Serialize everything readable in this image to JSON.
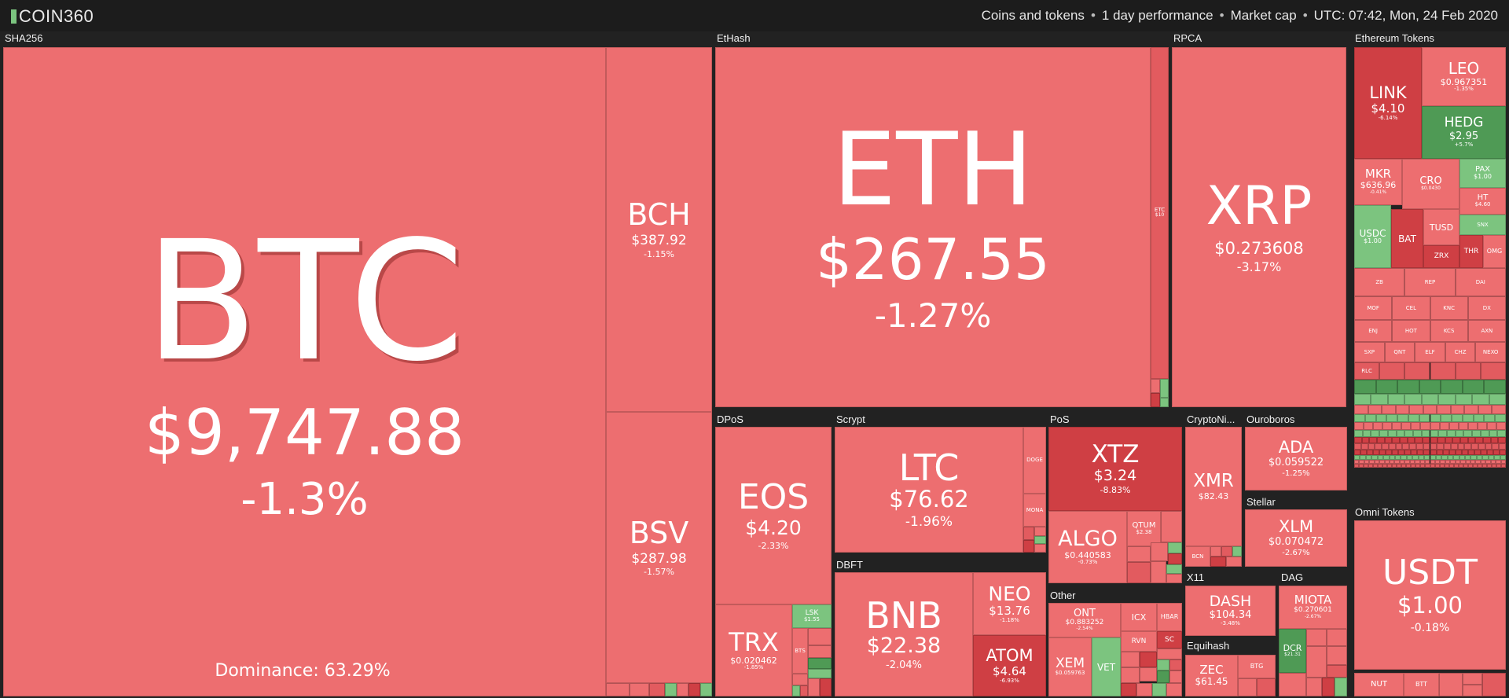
{
  "app": {
    "brand": "COIN360"
  },
  "settings": {
    "coins": "Coins and tokens",
    "period": "1 day performance",
    "metric": "Market cap",
    "time": "UTC: 07:42, Mon, 24 Feb 2020",
    "separator": "•"
  },
  "groups": {
    "sha256": "SHA256",
    "ethash": "EtHash",
    "rpca": "RPCA",
    "ethereum_tokens": "Ethereum Tokens",
    "dpos": "DPoS",
    "scrypt": "Scrypt",
    "pos": "PoS",
    "cryptonight": "CryptoNi...",
    "ouroboros": "Ouroboros",
    "stellar": "Stellar",
    "dbft": "DBFT",
    "other": "Other",
    "x11": "X11",
    "dag": "DAG",
    "equihash": "Equihash",
    "omni": "Omni Tokens"
  },
  "dominance": "Dominance: 63.29%",
  "coins": {
    "btc": {
      "sym": "BTC",
      "price": "$9,747.88",
      "chg": "-1.3%"
    },
    "bch": {
      "sym": "BCH",
      "price": "$387.92",
      "chg": "-1.15%"
    },
    "bsv": {
      "sym": "BSV",
      "price": "$287.98",
      "chg": "-1.57%"
    },
    "eth": {
      "sym": "ETH",
      "price": "$267.55",
      "chg": "-1.27%"
    },
    "etc": {
      "sym": "ETC",
      "price": "$10",
      "chg": ""
    },
    "xrp": {
      "sym": "XRP",
      "price": "$0.273608",
      "chg": "-3.17%"
    },
    "link": {
      "sym": "LINK",
      "price": "$4.10",
      "chg": "-6.14%"
    },
    "leo": {
      "sym": "LEO",
      "price": "$0.967351",
      "chg": "-1.35%"
    },
    "hedg": {
      "sym": "HEDG",
      "price": "$2.95",
      "chg": "+5.7%"
    },
    "mkr": {
      "sym": "MKR",
      "price": "$636.96",
      "chg": "-0.41%"
    },
    "cro": {
      "sym": "CRO",
      "price": "$0.0430",
      "chg": ""
    },
    "pax": {
      "sym": "PAX",
      "price": "$1.00",
      "chg": ""
    },
    "ht": {
      "sym": "HT",
      "price": "$4.60",
      "chg": ""
    },
    "usdc": {
      "sym": "USDC",
      "price": "$1.00",
      "chg": ""
    },
    "bat": {
      "sym": "BAT",
      "price": "",
      "chg": ""
    },
    "tusd": {
      "sym": "TUSD",
      "price": "",
      "chg": ""
    },
    "snx": {
      "sym": "SNX",
      "price": "",
      "chg": ""
    },
    "zrx": {
      "sym": "ZRX",
      "price": "",
      "chg": ""
    },
    "thr": {
      "sym": "THR",
      "price": "",
      "chg": ""
    },
    "omg": {
      "sym": "OMG",
      "price": "",
      "chg": ""
    },
    "eos": {
      "sym": "EOS",
      "price": "$4.20",
      "chg": "-2.33%"
    },
    "trx": {
      "sym": "TRX",
      "price": "$0.020462",
      "chg": "-1.85%"
    },
    "lsk": {
      "sym": "LSK",
      "price": "$1.55",
      "chg": ""
    },
    "bts": {
      "sym": "BTS",
      "price": "",
      "chg": ""
    },
    "ltc": {
      "sym": "LTC",
      "price": "$76.62",
      "chg": "-1.96%"
    },
    "doge": {
      "sym": "DOGE",
      "price": "",
      "chg": ""
    },
    "mona": {
      "sym": "MONA",
      "price": "",
      "chg": ""
    },
    "xtz": {
      "sym": "XTZ",
      "price": "$3.24",
      "chg": "-8.83%"
    },
    "algo": {
      "sym": "ALGO",
      "price": "$0.440583",
      "chg": "-0.73%"
    },
    "qtum": {
      "sym": "QTUM",
      "price": "$2.38",
      "chg": ""
    },
    "xmr": {
      "sym": "XMR",
      "price": "$82.43",
      "chg": ""
    },
    "bcn": {
      "sym": "BCN",
      "price": "",
      "chg": ""
    },
    "ada": {
      "sym": "ADA",
      "price": "$0.059522",
      "chg": "-1.25%"
    },
    "xlm": {
      "sym": "XLM",
      "price": "$0.070472",
      "chg": "-2.67%"
    },
    "bnb": {
      "sym": "BNB",
      "price": "$22.38",
      "chg": "-2.04%"
    },
    "neo": {
      "sym": "NEO",
      "price": "$13.76",
      "chg": "-1.18%"
    },
    "atom": {
      "sym": "ATOM",
      "price": "$4.64",
      "chg": "-6.93%"
    },
    "ont": {
      "sym": "ONT",
      "price": "$0.883252",
      "chg": "-2.54%"
    },
    "icx": {
      "sym": "ICX",
      "price": "",
      "chg": ""
    },
    "hbar": {
      "sym": "HBAR",
      "price": "",
      "chg": ""
    },
    "rvn": {
      "sym": "RVN",
      "price": "",
      "chg": ""
    },
    "sc": {
      "sym": "SC",
      "price": "",
      "chg": ""
    },
    "xem": {
      "sym": "XEM",
      "price": "$0.059763",
      "chg": ""
    },
    "vet": {
      "sym": "VET",
      "price": "",
      "chg": ""
    },
    "dash": {
      "sym": "DASH",
      "price": "$104.34",
      "chg": "-3.48%"
    },
    "miota": {
      "sym": "MIOTA",
      "price": "$0.270601",
      "chg": "-2.67%"
    },
    "dcr": {
      "sym": "DCR",
      "price": "$21.31",
      "chg": ""
    },
    "zec": {
      "sym": "ZEC",
      "price": "$61.45",
      "chg": ""
    },
    "btg": {
      "sym": "BTG",
      "price": "",
      "chg": ""
    },
    "usdt": {
      "sym": "USDT",
      "price": "$1.00",
      "chg": "-0.18%"
    },
    "nut": {
      "sym": "NUT",
      "price": "",
      "chg": ""
    },
    "btt": {
      "sym": "BTT",
      "price": "",
      "chg": ""
    },
    "small_tokens": [
      "ZB",
      "REP",
      "DAI",
      "MOF",
      "CEL",
      "KNC",
      "DX",
      "ENJ",
      "HOT",
      "KCS",
      "AXN",
      "SXP",
      "QNT",
      "ELF",
      "CHZ",
      "NEXO",
      "RLC"
    ]
  }
}
